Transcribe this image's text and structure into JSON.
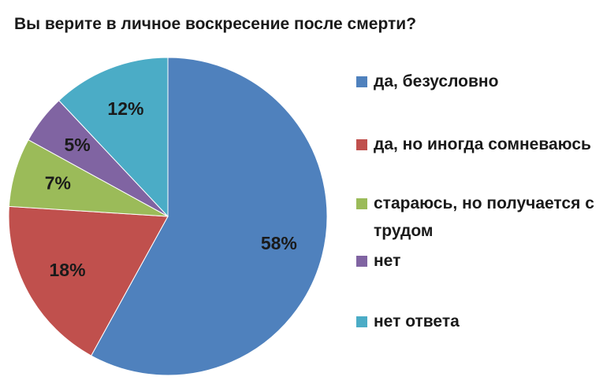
{
  "chart_data": {
    "type": "pie",
    "title": "Вы верите в личное воскресение после смерти?",
    "categories": [
      "да, безусловно",
      "да, но иногда сомневаюсь",
      "стараюсь, но получается с трудом",
      "нет",
      "нет ответа"
    ],
    "values": [
      58,
      18,
      7,
      5,
      12
    ],
    "value_labels": [
      "58%",
      "18%",
      "7%",
      "5%",
      "12%"
    ],
    "colors": [
      "#4f81bd",
      "#c0504d",
      "#9bbb59",
      "#8064a2",
      "#4bacc6"
    ],
    "legend": "right"
  }
}
